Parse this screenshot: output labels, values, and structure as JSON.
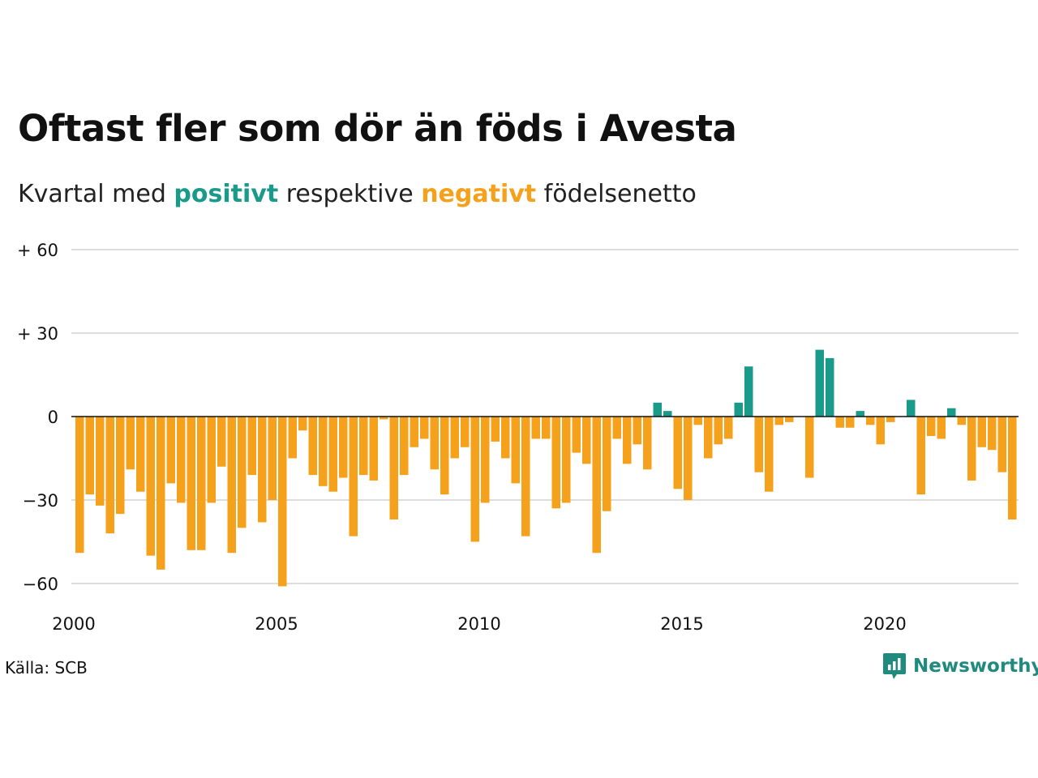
{
  "title": "Oftast fler som dör än föds i Avesta",
  "subtitle": {
    "prefix": "Kvartal med ",
    "positive": "positivt",
    "middle": " respektive ",
    "negative": "negativt",
    "suffix": " födelsenetto"
  },
  "colors": {
    "positive": "#1a9a8a",
    "negative": "#f5a11c",
    "grid": "#dddddd",
    "axis": "#111111"
  },
  "source": "Källa: SCB",
  "brand": {
    "name": "Newsworthy",
    "icon": "newsworthy-logo-icon",
    "color": "#1f8a7e"
  },
  "chart_data": {
    "type": "bar",
    "ylim": [
      -60,
      60
    ],
    "y_ticks": [
      {
        "value": 60,
        "label": "+ 60"
      },
      {
        "value": 30,
        "label": "+ 30"
      },
      {
        "value": 0,
        "label": "0"
      },
      {
        "value": -30,
        "label": "−30"
      },
      {
        "value": -60,
        "label": "−60"
      }
    ],
    "x_start": "2000-Q1",
    "x_ticks": [
      "2000",
      "2005",
      "2010",
      "2015",
      "2020"
    ],
    "grid": true,
    "values": [
      -49,
      -28,
      -32,
      -42,
      -35,
      -19,
      -27,
      -50,
      -55,
      -24,
      -31,
      -48,
      -48,
      -31,
      -18,
      -49,
      -40,
      -21,
      -38,
      -30,
      -61,
      -15,
      -5,
      -21,
      -25,
      -27,
      -22,
      -43,
      -21,
      -23,
      -1,
      -37,
      -21,
      -11,
      -8,
      -19,
      -28,
      -15,
      -11,
      -45,
      -31,
      -9,
      -15,
      -24,
      -43,
      -8,
      -8,
      -33,
      -31,
      -13,
      -17,
      -49,
      -34,
      -8,
      -17,
      -10,
      -19,
      5,
      2,
      -26,
      -30,
      -3,
      -15,
      -10,
      -8,
      5,
      18,
      -20,
      -27,
      -3,
      -2,
      0,
      -22,
      24,
      21,
      -4,
      -4,
      2,
      -3,
      -10,
      -2,
      0,
      6,
      -28,
      -7,
      -8,
      3,
      -3,
      -23,
      -11,
      -12,
      -20,
      -37
    ]
  }
}
